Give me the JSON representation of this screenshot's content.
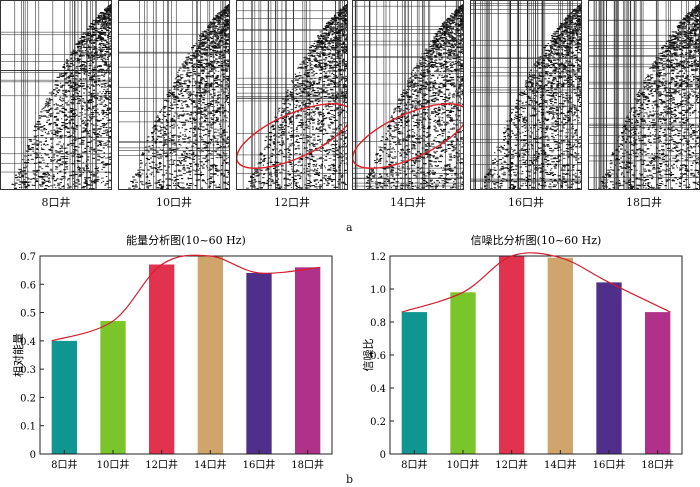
{
  "figure": {
    "part_a_label": "a",
    "part_b_label": "b",
    "panels": [
      {
        "label": "8口井",
        "highlight": false,
        "line_density": "low"
      },
      {
        "label": "10口井",
        "highlight": false,
        "line_density": "low"
      },
      {
        "label": "12口井",
        "highlight": true,
        "line_density": "medium"
      },
      {
        "label": "14口井",
        "highlight": true,
        "line_density": "medium"
      },
      {
        "label": "16口井",
        "highlight": false,
        "line_density": "high"
      },
      {
        "label": "18口井",
        "highlight": false,
        "line_density": "high"
      }
    ],
    "highlight_color": "#e0202a"
  },
  "chart_data": [
    {
      "type": "bar",
      "title": "能量分析图(10~60 Hz)",
      "xlabel": "",
      "ylabel": "相对能量",
      "categories": [
        "8口井",
        "10口井",
        "12口井",
        "14口井",
        "16口井",
        "18口井"
      ],
      "values": [
        0.4,
        0.47,
        0.67,
        0.7,
        0.64,
        0.66
      ],
      "colors": [
        "#0f9690",
        "#7ac52a",
        "#e2334e",
        "#cfa56b",
        "#4f2f8a",
        "#b0318a"
      ],
      "ylim": [
        0,
        0.7
      ],
      "yticks": [
        0,
        0.1,
        0.2,
        0.3,
        0.4,
        0.5,
        0.6,
        0.7
      ],
      "ytick_labels": [
        "0",
        "0.1",
        "0.2",
        "0.3",
        "0.4",
        "0.5",
        "0.6",
        "0.7"
      ],
      "trend_line": true,
      "trend_color": "#d21f2f"
    },
    {
      "type": "bar",
      "title": "信噪比分析图(10~60 Hz)",
      "xlabel": "",
      "ylabel": "信噪比",
      "categories": [
        "8口井",
        "10口井",
        "12口井",
        "14口井",
        "16口井",
        "18口井"
      ],
      "values": [
        0.86,
        0.98,
        1.2,
        1.19,
        1.04,
        0.86
      ],
      "colors": [
        "#0f9690",
        "#7ac52a",
        "#e2334e",
        "#cfa56b",
        "#4f2f8a",
        "#b0318a"
      ],
      "ylim": [
        0,
        1.2
      ],
      "yticks": [
        0,
        0.2,
        0.4,
        0.6,
        0.8,
        1.0,
        1.2
      ],
      "ytick_labels": [
        "0",
        "0.2",
        "0.4",
        "0.6",
        "0.8",
        "1.0",
        "1.2"
      ],
      "trend_line": true,
      "trend_color": "#d21f2f"
    }
  ]
}
